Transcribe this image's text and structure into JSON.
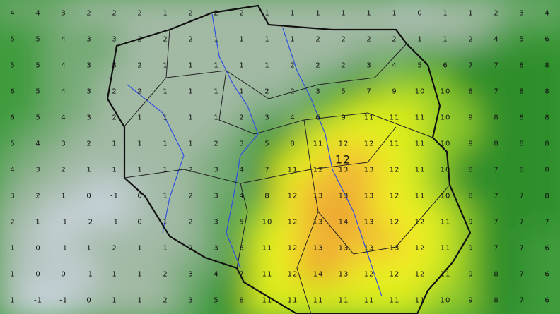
{
  "map": {
    "type": "temperature-field",
    "region": "Poland",
    "grid_values": [
      [
        4,
        4,
        3,
        2,
        2,
        2,
        1,
        2,
        2,
        2,
        1,
        1,
        1,
        1,
        1,
        1,
        0,
        1,
        1,
        2,
        3,
        4
      ],
      [
        5,
        5,
        4,
        3,
        3,
        2,
        2,
        2,
        1,
        1,
        1,
        1,
        2,
        2,
        2,
        2,
        1,
        1,
        2,
        4,
        5,
        6
      ],
      [
        5,
        5,
        4,
        3,
        3,
        2,
        1,
        1,
        1,
        1,
        1,
        2,
        2,
        2,
        3,
        4,
        5,
        6,
        7,
        7,
        8,
        8
      ],
      [
        6,
        5,
        4,
        3,
        2,
        2,
        1,
        1,
        1,
        1,
        2,
        2,
        3,
        5,
        7,
        9,
        10,
        10,
        8,
        7,
        8,
        8
      ],
      [
        6,
        5,
        4,
        3,
        2,
        1,
        1,
        1,
        1,
        2,
        3,
        4,
        6,
        9,
        11,
        11,
        11,
        10,
        9,
        8,
        8,
        8
      ],
      [
        5,
        4,
        3,
        2,
        1,
        1,
        1,
        1,
        2,
        3,
        5,
        8,
        11,
        12,
        12,
        11,
        11,
        10,
        9,
        8,
        8,
        8
      ],
      [
        4,
        3,
        2,
        1,
        1,
        1,
        1,
        2,
        3,
        4,
        7,
        11,
        12,
        13,
        13,
        12,
        11,
        10,
        8,
        7,
        8,
        8
      ],
      [
        3,
        2,
        1,
        0,
        -1,
        0,
        1,
        2,
        3,
        4,
        8,
        12,
        13,
        13,
        13,
        12,
        11,
        10,
        8,
        7,
        7,
        8
      ],
      [
        2,
        1,
        -1,
        -2,
        -1,
        0,
        1,
        2,
        3,
        5,
        10,
        12,
        13,
        14,
        13,
        12,
        12,
        11,
        9,
        7,
        7,
        7
      ],
      [
        1,
        0,
        -1,
        1,
        2,
        1,
        1,
        2,
        3,
        6,
        11,
        12,
        13,
        13,
        13,
        13,
        12,
        11,
        9,
        7,
        7,
        6
      ],
      [
        1,
        0,
        0,
        -1,
        1,
        1,
        2,
        3,
        4,
        7,
        11,
        12,
        14,
        13,
        12,
        12,
        12,
        11,
        9,
        8,
        7,
        6
      ],
      [
        1,
        -1,
        -1,
        0,
        1,
        1,
        2,
        3,
        5,
        8,
        11,
        11,
        11,
        11,
        11,
        11,
        11,
        10,
        9,
        8,
        7,
        6
      ]
    ],
    "highlight_label": "12",
    "color_scale": [
      {
        "min": -99,
        "color": "#c9d3dc"
      },
      {
        "min": 0,
        "color": "#b4c4c0"
      },
      {
        "min": 1,
        "color": "#a2b9a4"
      },
      {
        "min": 3,
        "color": "#74aa74"
      },
      {
        "min": 5,
        "color": "#3f9c3e"
      },
      {
        "min": 7,
        "color": "#2f8e2b"
      },
      {
        "min": 9,
        "color": "#8fca2c"
      },
      {
        "min": 11,
        "color": "#d9ec1e"
      },
      {
        "min": 12,
        "color": "#f0ee22"
      },
      {
        "min": 13,
        "color": "#f0b634"
      },
      {
        "min": 14,
        "color": "#e99a2a"
      }
    ],
    "border_color": "#111111",
    "river_color": "#3050e0"
  }
}
